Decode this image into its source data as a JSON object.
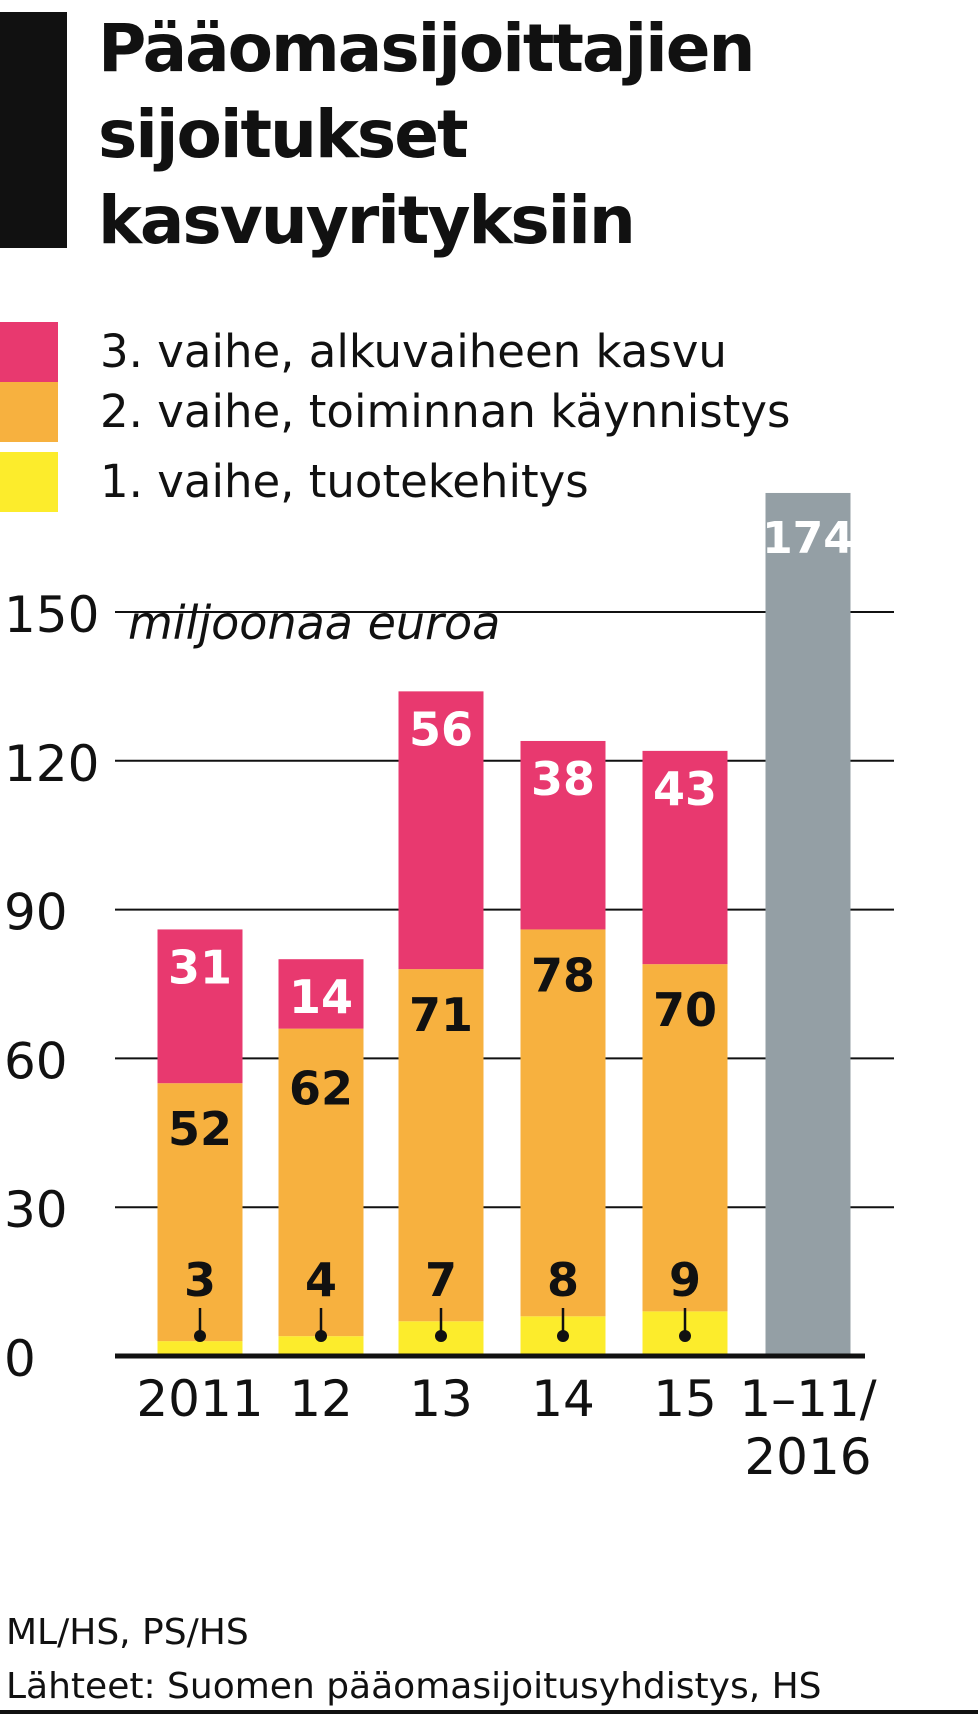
{
  "title": "Pääomasijoittajien sijoitukset kasvuyrityksiin",
  "unit_label": "miljoonaa euroa",
  "legend": [
    {
      "label": "3. vaihe, alkuvaiheen kasvu",
      "color": "#e8396f"
    },
    {
      "label": "2. vaihe, toiminnan käynnistys",
      "color": "#f7b13f"
    },
    {
      "label": "1. vaihe, tuotekehitys",
      "color": "#fcec2c"
    }
  ],
  "chart_data": {
    "type": "bar",
    "stacked": true,
    "categories": [
      "2011",
      "12",
      "13",
      "14",
      "15",
      "1–11/ 2016"
    ],
    "series": [
      {
        "name": "1. vaihe, tuotekehitys",
        "color": "#fcec2c",
        "values": [
          3,
          4,
          7,
          8,
          9,
          null
        ]
      },
      {
        "name": "2. vaihe, toiminnan käynnistys",
        "color": "#f7b13f",
        "values": [
          52,
          62,
          71,
          78,
          70,
          null
        ]
      },
      {
        "name": "3. vaihe, alkuvaiheen kasvu",
        "color": "#e8396f",
        "values": [
          31,
          14,
          56,
          38,
          43,
          null
        ]
      }
    ],
    "total_bar": {
      "category": "1–11/ 2016",
      "value": 174,
      "color": "#949fa5"
    },
    "y_ticks": [
      0,
      30,
      60,
      90,
      120,
      150
    ],
    "ylim": [
      0,
      150
    ],
    "ylabel": "miljoonaa euroa",
    "grid": true
  },
  "credits": {
    "byline": "ML/HS, PS/HS",
    "source": "Lähteet: Suomen pääomasijoitusyhdistys, HS"
  }
}
